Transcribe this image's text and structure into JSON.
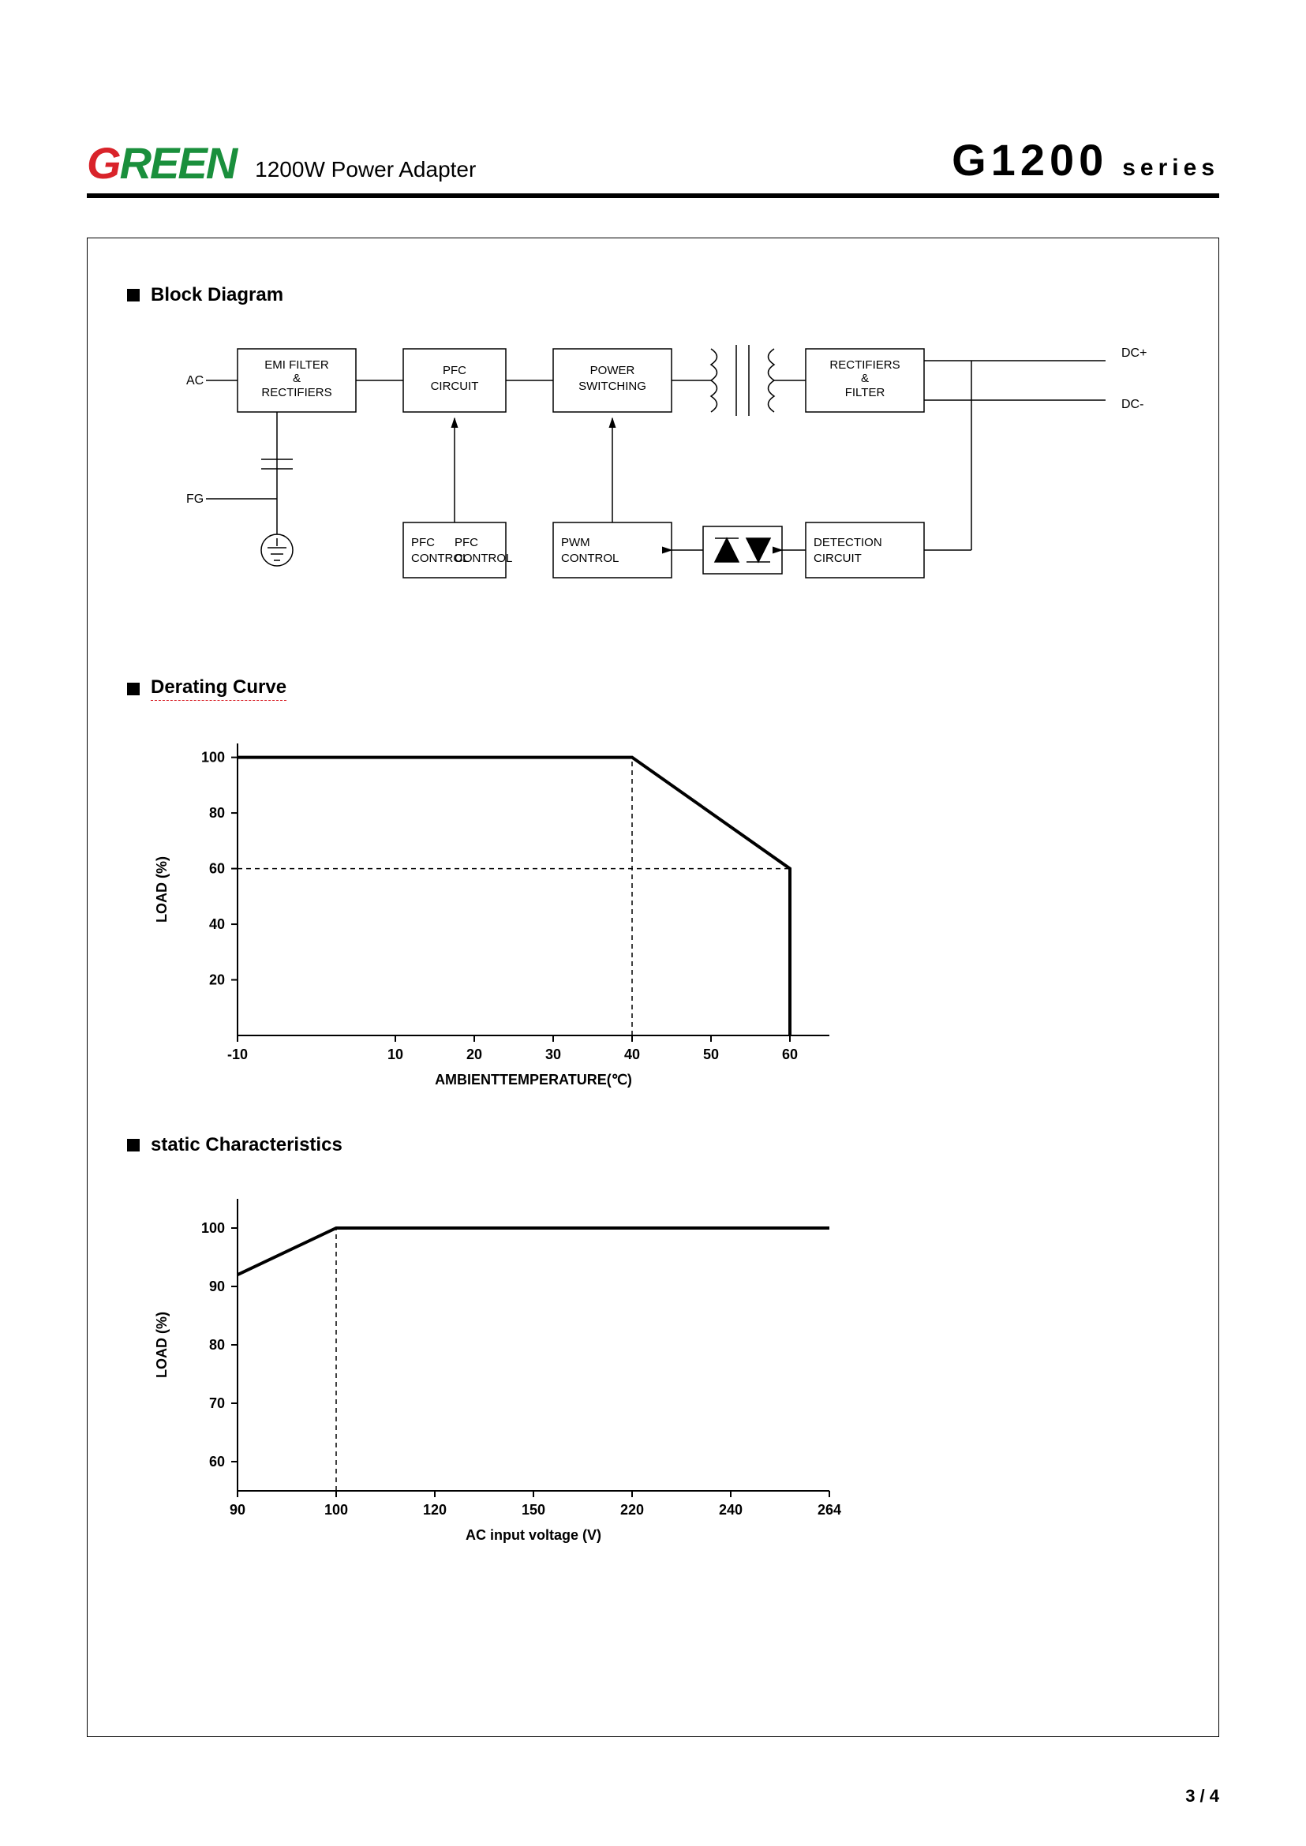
{
  "header": {
    "logo_g": "G",
    "logo_reen": "REEN",
    "subtitle": "1200W Power Adapter",
    "model": "G1200",
    "series": "series"
  },
  "sections": {
    "block": "Block Diagram",
    "derating": "Derating Curve",
    "static": "static Characteristics"
  },
  "block_diagram": {
    "colors": {
      "stroke": "#000000",
      "bg": "#ffffff"
    },
    "nodes": {
      "ac": "AC",
      "fg": "FG",
      "emi1": "EMI FILTER",
      "emi2": "&",
      "emi3": "RECTIFIERS",
      "pfc1": "PFC",
      "pfc2": "CIRCUIT",
      "power1": "POWER",
      "power2": "SWITCHING",
      "rect1": "RECTIFIERS",
      "rect2": "&",
      "rect3": "FILTER",
      "pfcctrl1": "PFC",
      "pfcctrl2": "CONTROL",
      "pwm1": "PWM",
      "pwm2": "CONTROL",
      "det1": "DETECTION",
      "det2": "CIRCUIT",
      "dcplus": "DC+",
      "dcminus": "DC-"
    }
  },
  "derating_chart": {
    "type": "line",
    "xlabel": "AMBIENTTEMPERATURE(℃)",
    "ylabel": "LOAD (%)",
    "x_ticks": [
      "-10",
      "10",
      "20",
      "30",
      "40",
      "50",
      "60"
    ],
    "y_ticks": [
      "20",
      "40",
      "60",
      "80",
      "100"
    ],
    "xlim": [
      -10,
      65
    ],
    "ylim": [
      0,
      105
    ],
    "line_points": [
      [
        -10,
        100
      ],
      [
        40,
        100
      ],
      [
        60,
        60
      ],
      [
        60,
        0
      ]
    ],
    "dash_v": [
      40,
      0,
      40,
      100
    ],
    "dash_h": [
      -10,
      60,
      60,
      60
    ],
    "line_color": "#000000",
    "line_width": 3,
    "axis_color": "#000000",
    "font_size": 18
  },
  "static_chart": {
    "type": "line",
    "xlabel": "AC input voltage (V)",
    "ylabel": "LOAD (%)",
    "x_ticks": [
      "90",
      "100",
      "120",
      "150",
      "220",
      "240",
      "264"
    ],
    "y_ticks": [
      "60",
      "70",
      "80",
      "90",
      "100"
    ],
    "x_tick_pos": [
      90,
      100,
      120,
      150,
      220,
      240,
      264
    ],
    "ylim": [
      55,
      105
    ],
    "line_points": [
      [
        90,
        92
      ],
      [
        100,
        100
      ],
      [
        264,
        100
      ]
    ],
    "dash_v": [
      100,
      55,
      100,
      100
    ],
    "line_color": "#000000",
    "line_width": 3,
    "axis_color": "#000000",
    "font_size": 18
  },
  "footer": {
    "page": "3 / 4"
  }
}
